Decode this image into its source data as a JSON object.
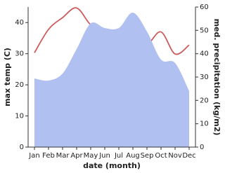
{
  "chart_data": {
    "type": "area-line",
    "categories": [
      "Jan",
      "Feb",
      "Mar",
      "Apr",
      "May",
      "Jun",
      "Jul",
      "Aug",
      "Sep",
      "Oct",
      "Nov",
      "Dec"
    ],
    "xlabel": "date (month)",
    "ylabel": "max temp (C)",
    "y2label": "med. precipitation (kg/m2)",
    "ylim": [
      0,
      45
    ],
    "yticks": [
      0,
      10,
      20,
      30,
      40
    ],
    "y2lim": [
      0,
      60
    ],
    "y2ticks": [
      0,
      10,
      20,
      30,
      40,
      50,
      60
    ],
    "series": [
      {
        "name": "max temp (C)",
        "color": "#cd5a5a",
        "axis": "y",
        "kind": "line",
        "values": [
          30.3,
          37.8,
          41.6,
          44.7,
          39.3,
          37.5,
          33.7,
          34.6,
          33,
          37,
          29.9,
          32.8
        ]
      },
      {
        "name": "med. precipitation (kg/m2)",
        "color": "#b0c0f0",
        "axis": "y2",
        "kind": "area",
        "values": [
          29.4,
          28.5,
          31.5,
          42,
          53,
          51,
          51,
          57.6,
          49.5,
          37.5,
          36,
          24
        ]
      }
    ]
  }
}
